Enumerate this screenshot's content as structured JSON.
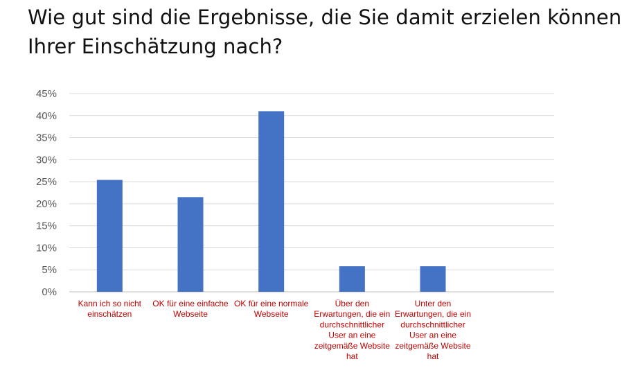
{
  "title": "Wie gut sind die Ergebnisse, die Sie damit erzielen können Ihrer Einschätzung nach?",
  "chart_data": {
    "type": "bar",
    "title": "",
    "xlabel": "",
    "ylabel": "",
    "ylim": [
      0,
      0.45
    ],
    "yticks": [
      0,
      0.05,
      0.1,
      0.15,
      0.2,
      0.25,
      0.3,
      0.35,
      0.4,
      0.45
    ],
    "ytick_labels": [
      "0%",
      "5%",
      "10%",
      "15%",
      "20%",
      "25%",
      "30%",
      "35%",
      "40%",
      "45%"
    ],
    "categories": [
      [
        "Kann ich so nicht",
        "einschätzen"
      ],
      [
        "OK für eine einfache",
        "Webseite"
      ],
      [
        "OK für eine normale",
        "Webseite"
      ],
      [
        "Über den",
        "Erwartungen, die ein",
        "durchschnittlicher",
        "User an eine",
        "zeitgemäße Website",
        "hat"
      ],
      [
        "Unter den",
        "Erwartungen, die ein",
        "durchschnittlicher",
        "User an eine",
        "zeitgemäße Website",
        "hat"
      ],
      []
    ],
    "values": [
      0.254,
      0.215,
      0.41,
      0.058,
      0.058,
      0
    ],
    "grid": true,
    "legend": "none",
    "colors": {
      "bar": "#4472c4",
      "grid": "#d9d9d9",
      "axis": "#bfbfbf",
      "tick_text": "#595959",
      "category_text": "#c00000"
    }
  }
}
